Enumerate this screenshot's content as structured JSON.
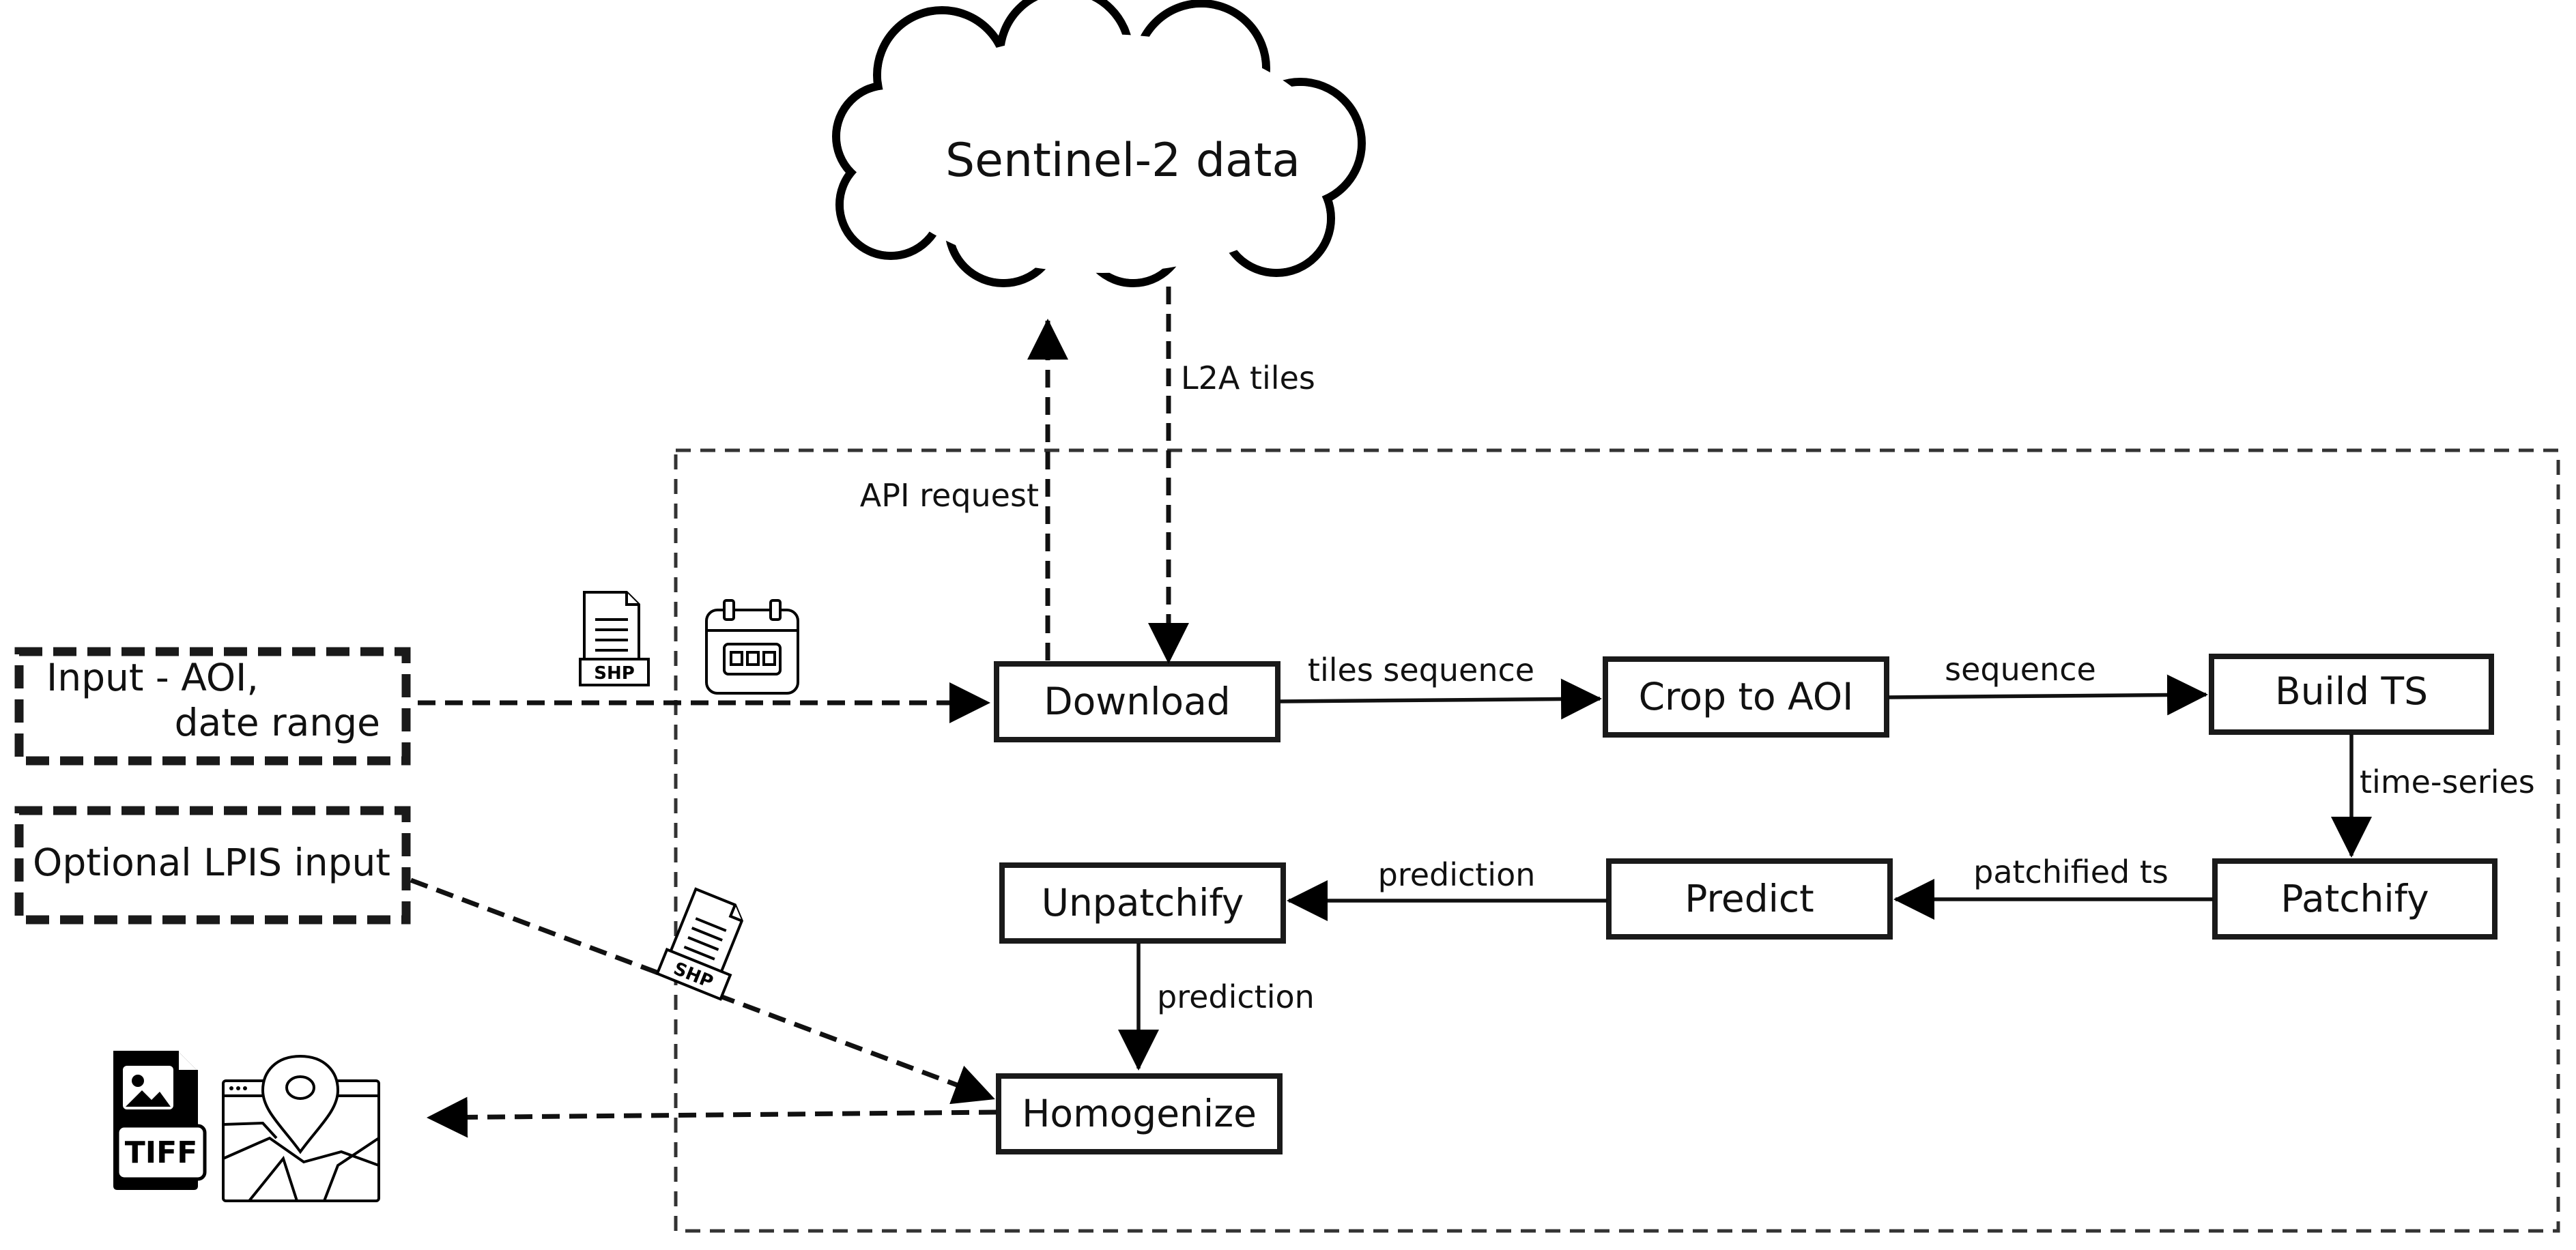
{
  "cloud": {
    "label": "Sentinel-2 data"
  },
  "inputs": {
    "aoi_line1": "Input - AOI,",
    "aoi_line2": "date range",
    "lpis": "Optional LPIS input"
  },
  "nodes": {
    "download": "Download",
    "crop": "Crop to AOI",
    "build_ts": "Build TS",
    "patchify": "Patchify",
    "predict": "Predict",
    "unpatchify": "Unpatchify",
    "homogenize": "Homogenize"
  },
  "edges": {
    "api_request": "API request",
    "l2a_tiles": "L2A tiles",
    "tiles_sequence": "tiles sequence",
    "sequence": "sequence",
    "time_series": "time-series",
    "patchified_ts": "patchified ts",
    "prediction_predict_unpatchify": "prediction",
    "prediction_unpatchify_homogenize": "prediction"
  },
  "icons": {
    "shp_badge": "SHP",
    "tiff_badge": "TIFF",
    "names": [
      "shp-file-icon",
      "calendar-icon",
      "tiff-file-icon",
      "map-icon"
    ]
  }
}
